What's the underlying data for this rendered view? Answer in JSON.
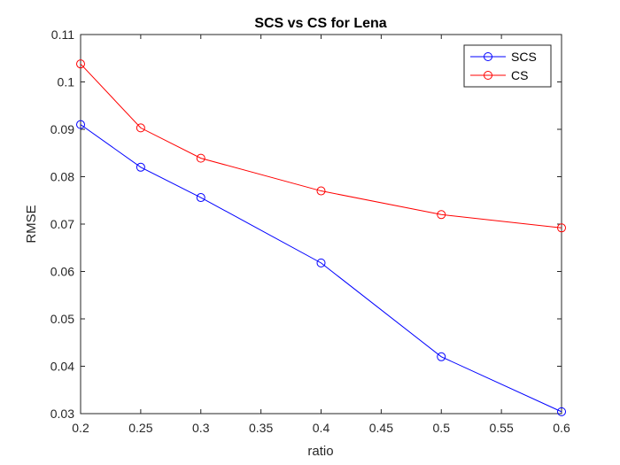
{
  "chart_data": {
    "type": "line",
    "title": "SCS vs CS for Lena",
    "xlabel": "ratio",
    "ylabel": "RMSE",
    "xlim": [
      0.2,
      0.6
    ],
    "ylim": [
      0.03,
      0.11
    ],
    "xticks": [
      "0.2",
      "0.25",
      "0.3",
      "0.35",
      "0.4",
      "0.45",
      "0.5",
      "0.55",
      "0.6"
    ],
    "yticks": [
      "0.03",
      "0.04",
      "0.05",
      "0.06",
      "0.07",
      "0.08",
      "0.09",
      "0.1",
      "0.11"
    ],
    "grid": false,
    "legend_position": "top-right",
    "series": [
      {
        "name": "SCS",
        "color": "#0000ff",
        "marker": "circle",
        "x": [
          0.2,
          0.25,
          0.3,
          0.4,
          0.5,
          0.6
        ],
        "y": [
          0.091,
          0.082,
          0.0756,
          0.0618,
          0.042,
          0.0304
        ]
      },
      {
        "name": "CS",
        "color": "#ff0000",
        "marker": "circle",
        "x": [
          0.2,
          0.25,
          0.3,
          0.4,
          0.5,
          0.6
        ],
        "y": [
          0.1038,
          0.0903,
          0.0839,
          0.077,
          0.072,
          0.0692
        ]
      }
    ]
  }
}
